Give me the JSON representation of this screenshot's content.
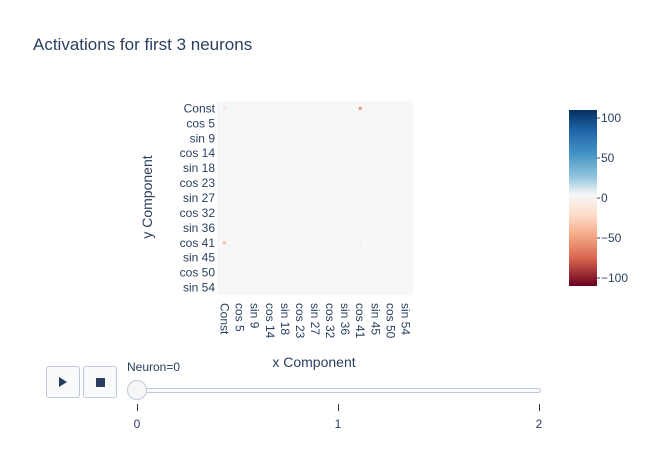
{
  "chart_data": {
    "type": "heatmap",
    "title": "Activations for first 3 neurons",
    "xlabel": "x Component",
    "ylabel": "y Component",
    "x_tick_labels": [
      "Const",
      "cos 5",
      "sin 9",
      "cos 14",
      "sin 18",
      "cos 23",
      "sin 27",
      "cos 32",
      "sin 36",
      "cos 41",
      "sin 45",
      "cos 50",
      "sin 54"
    ],
    "y_tick_labels": [
      "Const",
      "cos 5",
      "sin 9",
      "cos 14",
      "sin 18",
      "cos 23",
      "sin 27",
      "cos 32",
      "sin 36",
      "cos 41",
      "sin 45",
      "cos 50",
      "sin 54"
    ],
    "colorscale": "RdBu",
    "zmin": -110,
    "zmax": 110,
    "colorbar_ticks": [
      "100",
      "50",
      "0",
      "−50",
      "−100"
    ],
    "colorbar_tick_values": [
      100,
      50,
      0,
      -50,
      -100
    ],
    "background_value": 0,
    "notable_cells": [
      {
        "x": "cos 41",
        "y": "Const",
        "value": -60
      },
      {
        "x": "Const",
        "y": "cos 41",
        "value": -40
      },
      {
        "x": "Const",
        "y": "Const",
        "value": -15
      },
      {
        "x": "cos 41",
        "y": "cos 41",
        "value": -12
      },
      {
        "x": "sin 27",
        "y": "cos 41",
        "value": -5
      },
      {
        "x": "cos 41",
        "y": "sin 27",
        "value": -4
      }
    ]
  },
  "controls": {
    "play_icon": "play-icon",
    "stop_icon": "stop-icon",
    "slider_label": "Neuron=0",
    "slider_value": 0,
    "slider_ticks": [
      "0",
      "1",
      "2"
    ]
  }
}
